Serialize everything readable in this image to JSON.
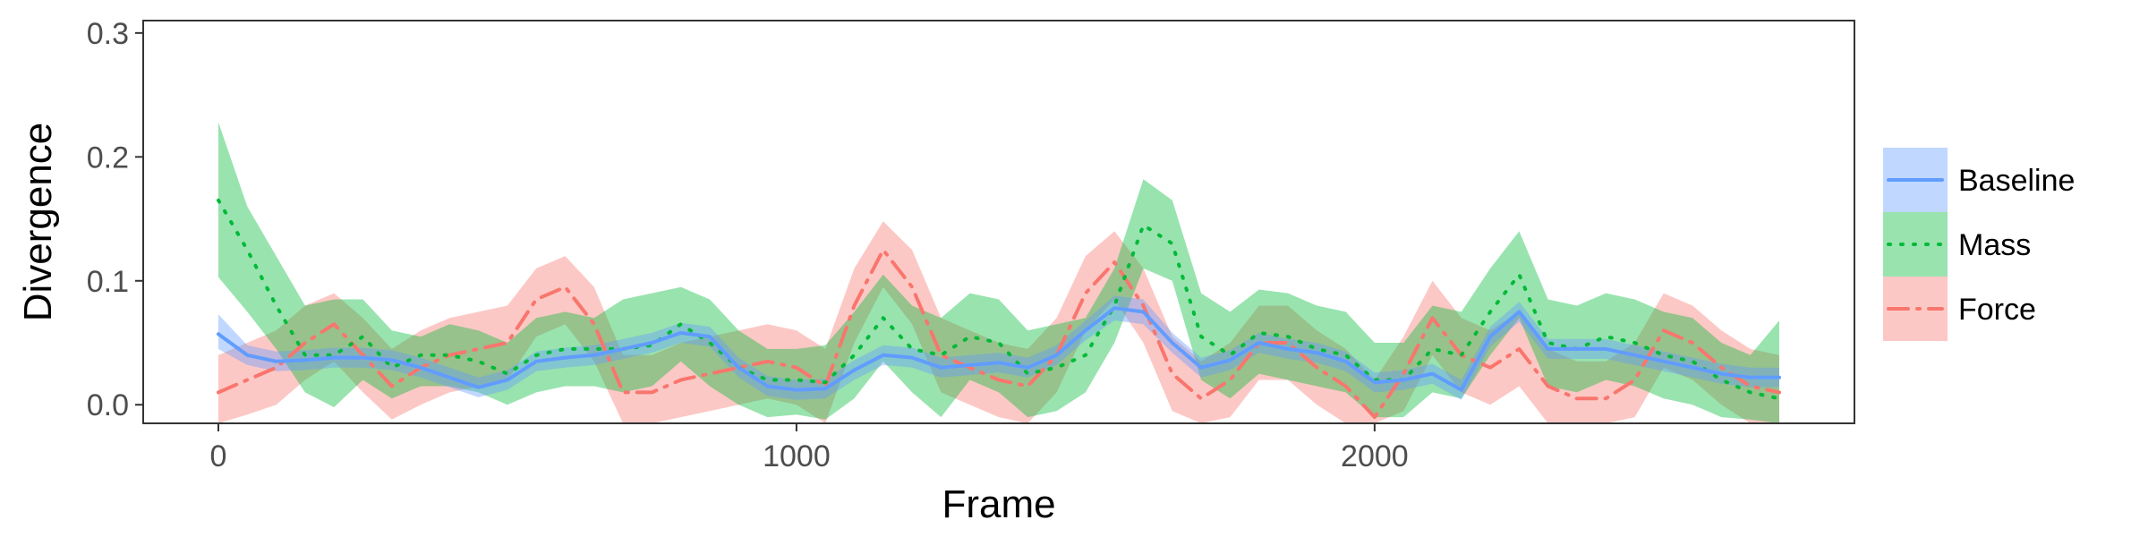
{
  "chart_data": {
    "type": "line",
    "title": "",
    "xlabel": "Frame",
    "ylabel": "Divergence",
    "xlim": [
      -130,
      2830
    ],
    "ylim": [
      -0.015,
      0.31
    ],
    "xticks": [
      0,
      1000,
      2000
    ],
    "yticks": [
      0.0,
      0.1,
      0.2,
      0.3
    ],
    "xtick_labels": [
      "0",
      "1000",
      "2000"
    ],
    "ytick_labels": [
      "0.0",
      "0.1",
      "0.2",
      "0.3"
    ],
    "grid": false,
    "legend_position": "right",
    "x": [
      0,
      50,
      100,
      150,
      200,
      250,
      300,
      350,
      400,
      450,
      500,
      550,
      600,
      650,
      700,
      750,
      800,
      850,
      900,
      950,
      1000,
      1050,
      1100,
      1150,
      1200,
      1250,
      1300,
      1350,
      1400,
      1450,
      1500,
      1550,
      1600,
      1650,
      1700,
      1750,
      1800,
      1850,
      1900,
      1950,
      2000,
      2050,
      2100,
      2150,
      2200,
      2250,
      2300,
      2350,
      2400,
      2450,
      2500,
      2550,
      2600,
      2650,
      2700
    ],
    "series": [
      {
        "name": "Baseline",
        "color": "#619CFF",
        "fill": "#619CFF",
        "linestyle": "solid",
        "values": [
          0.057,
          0.04,
          0.035,
          0.036,
          0.038,
          0.038,
          0.036,
          0.03,
          0.022,
          0.014,
          0.02,
          0.035,
          0.038,
          0.04,
          0.045,
          0.05,
          0.058,
          0.055,
          0.03,
          0.015,
          0.012,
          0.013,
          0.028,
          0.04,
          0.038,
          0.03,
          0.032,
          0.034,
          0.03,
          0.04,
          0.06,
          0.078,
          0.075,
          0.05,
          0.03,
          0.036,
          0.05,
          0.045,
          0.042,
          0.035,
          0.018,
          0.02,
          0.025,
          0.012,
          0.055,
          0.075,
          0.045,
          0.045,
          0.045,
          0.04,
          0.035,
          0.03,
          0.025,
          0.022,
          0.022
        ],
        "lower": [
          0.045,
          0.032,
          0.027,
          0.028,
          0.03,
          0.03,
          0.028,
          0.022,
          0.014,
          0.006,
          0.012,
          0.027,
          0.03,
          0.032,
          0.037,
          0.042,
          0.05,
          0.047,
          0.022,
          0.007,
          0.004,
          0.005,
          0.02,
          0.032,
          0.03,
          0.022,
          0.024,
          0.026,
          0.022,
          0.032,
          0.052,
          0.068,
          0.065,
          0.042,
          0.022,
          0.028,
          0.042,
          0.037,
          0.034,
          0.027,
          0.01,
          0.012,
          0.017,
          0.004,
          0.047,
          0.067,
          0.037,
          0.037,
          0.037,
          0.032,
          0.027,
          0.022,
          0.017,
          0.014,
          0.014
        ],
        "upper": [
          0.073,
          0.048,
          0.043,
          0.044,
          0.046,
          0.046,
          0.044,
          0.038,
          0.03,
          0.022,
          0.028,
          0.043,
          0.046,
          0.048,
          0.053,
          0.058,
          0.066,
          0.063,
          0.038,
          0.023,
          0.02,
          0.021,
          0.036,
          0.048,
          0.046,
          0.038,
          0.04,
          0.042,
          0.038,
          0.048,
          0.068,
          0.088,
          0.085,
          0.058,
          0.038,
          0.044,
          0.058,
          0.053,
          0.05,
          0.043,
          0.026,
          0.028,
          0.033,
          0.02,
          0.063,
          0.083,
          0.053,
          0.053,
          0.053,
          0.048,
          0.043,
          0.038,
          0.033,
          0.03,
          0.03
        ]
      },
      {
        "name": "Mass",
        "color": "#00BA38",
        "fill": "#00BA38",
        "linestyle": "dotted",
        "values": [
          0.165,
          0.125,
          0.08,
          0.04,
          0.04,
          0.055,
          0.03,
          0.04,
          0.04,
          0.035,
          0.025,
          0.04,
          0.045,
          0.045,
          0.045,
          0.048,
          0.065,
          0.05,
          0.03,
          0.02,
          0.02,
          0.018,
          0.04,
          0.07,
          0.045,
          0.04,
          0.055,
          0.05,
          0.025,
          0.03,
          0.04,
          0.08,
          0.145,
          0.13,
          0.055,
          0.04,
          0.058,
          0.055,
          0.045,
          0.04,
          0.02,
          0.02,
          0.045,
          0.04,
          0.075,
          0.105,
          0.05,
          0.045,
          0.055,
          0.05,
          0.04,
          0.035,
          0.02,
          0.01,
          0.005
        ],
        "lower": [
          0.103,
          0.075,
          0.045,
          0.01,
          -0.002,
          0.02,
          0.005,
          0.015,
          0.015,
          0.01,
          0.0,
          0.01,
          0.015,
          0.015,
          0.01,
          0.015,
          0.035,
          0.015,
          0.0,
          -0.01,
          -0.008,
          -0.012,
          0.005,
          0.035,
          0.01,
          -0.01,
          0.02,
          0.01,
          -0.01,
          -0.005,
          0.01,
          0.05,
          0.11,
          0.1,
          0.02,
          0.005,
          0.025,
          0.02,
          0.015,
          0.01,
          -0.01,
          -0.01,
          0.01,
          0.005,
          0.04,
          0.07,
          0.015,
          0.01,
          0.02,
          0.015,
          0.005,
          0.0,
          -0.01,
          -0.012,
          -0.015
        ],
        "upper": [
          0.228,
          0.16,
          0.12,
          0.08,
          0.085,
          0.085,
          0.06,
          0.055,
          0.065,
          0.06,
          0.05,
          0.07,
          0.075,
          0.07,
          0.085,
          0.09,
          0.095,
          0.085,
          0.06,
          0.045,
          0.045,
          0.048,
          0.075,
          0.105,
          0.08,
          0.07,
          0.09,
          0.085,
          0.06,
          0.065,
          0.07,
          0.11,
          0.182,
          0.165,
          0.09,
          0.075,
          0.093,
          0.09,
          0.08,
          0.075,
          0.05,
          0.05,
          0.08,
          0.075,
          0.11,
          0.14,
          0.085,
          0.08,
          0.09,
          0.085,
          0.075,
          0.07,
          0.05,
          0.04,
          0.068
        ]
      },
      {
        "name": "Force",
        "color": "#F8766D",
        "fill": "#F8766D",
        "linestyle": "dashdot",
        "values": [
          0.01,
          0.02,
          0.03,
          0.05,
          0.065,
          0.04,
          0.015,
          0.03,
          0.04,
          0.045,
          0.05,
          0.085,
          0.095,
          0.065,
          0.01,
          0.01,
          0.02,
          0.025,
          0.03,
          0.035,
          0.03,
          0.015,
          0.08,
          0.125,
          0.095,
          0.04,
          0.03,
          0.02,
          0.015,
          0.04,
          0.09,
          0.115,
          0.08,
          0.025,
          0.005,
          0.02,
          0.05,
          0.05,
          0.03,
          0.015,
          -0.01,
          0.025,
          0.07,
          0.04,
          0.03,
          0.045,
          0.015,
          0.005,
          0.005,
          0.02,
          0.06,
          0.05,
          0.03,
          0.015,
          0.01
        ],
        "lower": [
          -0.015,
          -0.008,
          0.0,
          0.02,
          0.035,
          0.01,
          -0.012,
          0.0,
          0.01,
          0.015,
          0.02,
          0.055,
          0.065,
          0.035,
          -0.015,
          -0.015,
          -0.01,
          -0.005,
          0.0,
          0.005,
          0.0,
          -0.015,
          0.05,
          0.095,
          0.065,
          0.01,
          0.0,
          -0.01,
          -0.015,
          0.01,
          0.06,
          0.085,
          0.05,
          -0.005,
          -0.015,
          -0.01,
          0.02,
          0.02,
          0.0,
          -0.015,
          -0.015,
          -0.005,
          0.04,
          0.01,
          0.0,
          0.015,
          -0.015,
          -0.015,
          -0.015,
          -0.01,
          0.03,
          0.02,
          0.0,
          -0.015,
          -0.015
        ],
        "upper": [
          0.04,
          0.05,
          0.06,
          0.08,
          0.09,
          0.07,
          0.045,
          0.06,
          0.07,
          0.075,
          0.08,
          0.11,
          0.12,
          0.095,
          0.04,
          0.04,
          0.05,
          0.055,
          0.06,
          0.065,
          0.06,
          0.045,
          0.11,
          0.148,
          0.125,
          0.07,
          0.06,
          0.05,
          0.045,
          0.07,
          0.12,
          0.14,
          0.11,
          0.055,
          0.035,
          0.05,
          0.08,
          0.08,
          0.06,
          0.045,
          0.02,
          0.055,
          0.1,
          0.07,
          0.06,
          0.075,
          0.045,
          0.035,
          0.035,
          0.05,
          0.09,
          0.08,
          0.06,
          0.045,
          0.04
        ]
      }
    ]
  }
}
